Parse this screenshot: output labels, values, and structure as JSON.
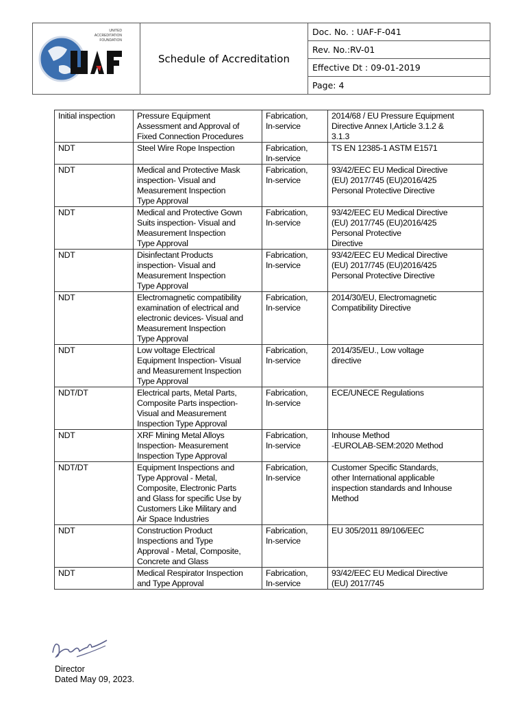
{
  "header": {
    "logo_text": [
      "UNITED",
      "ACCREDITATION",
      "FOUNDATION",
      "UAF"
    ],
    "title": "Schedule of Accreditation",
    "doc_no": "Doc. No. : UAF-F-041",
    "rev_no": "Rev. No.:RV-01",
    "effective": "Effective Dt : 09-01-2019",
    "page": "Page: 4"
  },
  "rows": [
    {
      "type": "Initial inspection",
      "scope": "Pressure Equipment\nAssessment and Approval of\nFixed Connection Procedures",
      "stage": "Fabrication,\nIn-service",
      "standard": "2014/68 / EU Pressure Equipment\nDirective Annex I,Article 3.1.2 &\n3.1.3"
    },
    {
      "type": "NDT",
      "scope": "Steel Wire Rope Inspection",
      "stage": "Fabrication,\nIn-service",
      "standard": "TS EN 12385-1 ASTM E1571"
    },
    {
      "type": "NDT",
      "scope": "Medical and Protective Mask\ninspection- Visual and\nMeasurement Inspection\nType Approval",
      "stage": "Fabrication,\nIn-service",
      "standard": "93/42/EEC EU Medical Directive\n(EU) 2017/745 (EU)2016/425\nPersonal Protective Directive"
    },
    {
      "type": " NDT",
      "scope": "Medical and Protective Gown\nSuits inspection- Visual and\nMeasurement Inspection\nType Approval",
      "stage": "Fabrication,\nIn-service",
      "standard": "93/42/EEC EU Medical Directive\n(EU) 2017/745 (EU)2016/425\nPersonal Protective\nDirective"
    },
    {
      "type": "NDT",
      "scope": "Disinfectant Products\ninspection- Visual and\nMeasurement Inspection\nType Approval",
      "stage": "Fabrication,\nIn-service",
      "standard": "93/42/EEC EU Medical Directive\n(EU) 2017/745 (EU)2016/425\nPersonal Protective Directive"
    },
    {
      "type": "NDT",
      "scope": "Electromagnetic compatibility\nexamination of electrical and\nelectronic devices- Visual and\nMeasurement Inspection\nType Approval",
      "stage": "Fabrication,\nIn-service",
      "standard": "2014/30/EU, Electromagnetic\nCompatibility Directive"
    },
    {
      "type": "NDT",
      "scope": "Low voltage Electrical\nEquipment Inspection- Visual\nand Measurement Inspection\nType Approval",
      "stage": "Fabrication,\nIn-service",
      "standard": "2014/35/EU., Low voltage\ndirective"
    },
    {
      "type": "NDT/DT",
      "scope": "Electrical parts, Metal Parts,\nComposite Parts inspection-\nVisual and Measurement\nInspection Type Approval",
      "stage": "Fabrication,\nIn-service",
      "standard": "ECE/UNECE Regulations"
    },
    {
      "type": "NDT",
      "scope": "XRF Mining Metal Alloys\nInspection- Measurement\nInspection Type Approval",
      "stage": "Fabrication,\nIn-service",
      "standard": "Inhouse Method\n-EUROLAB-SEM:2020 Method"
    },
    {
      "type": "NDT/DT",
      "scope": "Equipment Inspections and\nType Approval - Metal,\nComposite, Electronic Parts\nand Glass for specific Use by\nCustomers Like Military and\nAir Space Industries",
      "stage": "Fabrication,\nIn-service",
      "standard": "Customer Specific Standards,\nother International applicable\ninspection standards and Inhouse\nMethod"
    },
    {
      "type": "NDT",
      "scope": "Construction Product\nInspections and Type\nApproval - Metal, Composite,\nConcrete and Glass",
      "stage": "Fabrication,\nIn-service",
      "standard": "EU 305/2011 89/106/EEC"
    },
    {
      "type": "NDT",
      "scope": "Medical Respirator Inspection\nand Type Approval",
      "stage": "Fabrication,\nIn-service",
      "standard": "93/42/EEC EU Medical Directive\n(EU) 2017/745"
    }
  ],
  "footer": {
    "role": "Director",
    "dated": "Dated May 09, 2023."
  }
}
